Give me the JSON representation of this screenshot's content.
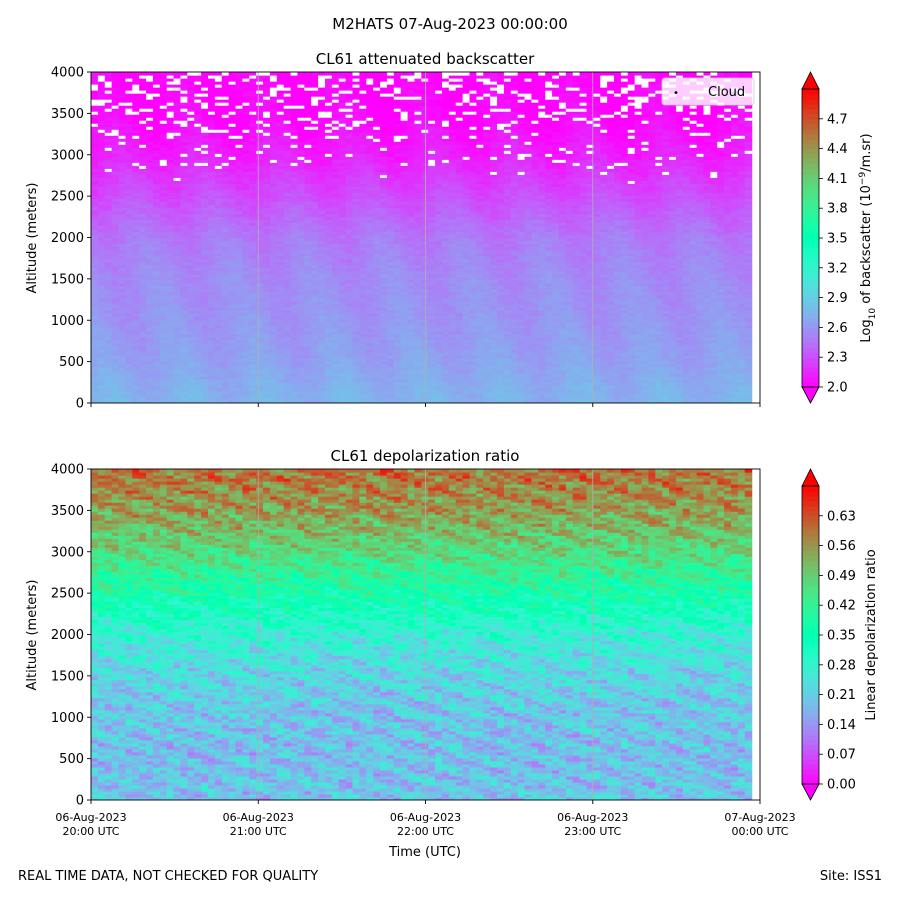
{
  "figure": {
    "suptitle": "M2HATS 07-Aug-2023 00:00:00",
    "footer_left": "REAL TIME DATA, NOT CHECKED FOR QUALITY",
    "footer_right": "Site: ISS1",
    "xlabel": "Time (UTC)",
    "x_ticks": [
      {
        "date": "06-Aug-2023",
        "time": "20:00 UTC"
      },
      {
        "date": "06-Aug-2023",
        "time": "21:00 UTC"
      },
      {
        "date": "06-Aug-2023",
        "time": "22:00 UTC"
      },
      {
        "date": "06-Aug-2023",
        "time": "23:00 UTC"
      },
      {
        "date": "07-Aug-2023",
        "time": "00:00 UTC"
      }
    ],
    "x_range_hours": [
      20,
      24
    ],
    "data_end_hour": 23.95
  },
  "chart_data": [
    {
      "type": "heatmap",
      "title": "CL61 attenuated backscatter",
      "ylabel": "Altitude (meters)",
      "ylim": [
        0,
        4000
      ],
      "y_ticks": [
        0,
        500,
        1000,
        1500,
        2000,
        2500,
        3000,
        3500,
        4000
      ],
      "grid": "vertical",
      "legend": {
        "label": "Cloud",
        "marker": "•",
        "placement": "top-right"
      },
      "colorbar": {
        "label_parts": [
          "Log",
          "10",
          " of backscatter (10",
          "−9",
          "/m.sr)"
        ],
        "range": [
          2.0,
          5.0
        ],
        "ticks": [
          "2.0",
          "2.3",
          "2.6",
          "2.9",
          "3.2",
          "3.5",
          "3.8",
          "4.1",
          "4.4",
          "4.7"
        ],
        "colormap": "rainbow"
      },
      "profile": [
        {
          "altitude": 0,
          "value": 2.75
        },
        {
          "altitude": 200,
          "value": 2.72
        },
        {
          "altitude": 500,
          "value": 2.66
        },
        {
          "altitude": 1000,
          "value": 2.6
        },
        {
          "altitude": 1500,
          "value": 2.56
        },
        {
          "altitude": 2000,
          "value": 2.48
        },
        {
          "altitude": 2500,
          "value": 2.3
        },
        {
          "altitude": 3000,
          "value": 2.12
        },
        {
          "altitude": 3500,
          "value": 2.02
        },
        {
          "altitude": 4000,
          "value": 2.0
        }
      ],
      "cloud_base_m": 2600
    },
    {
      "type": "heatmap",
      "title": "CL61 depolarization ratio",
      "ylabel": "Altitude (meters)",
      "ylim": [
        0,
        4000
      ],
      "y_ticks": [
        0,
        500,
        1000,
        1500,
        2000,
        2500,
        3000,
        3500,
        4000
      ],
      "grid": "vertical",
      "colorbar": {
        "label_parts": [
          "Linear depolarization ratio"
        ],
        "range": [
          0.0,
          0.7
        ],
        "ticks": [
          "0.00",
          "0.07",
          "0.14",
          "0.21",
          "0.28",
          "0.35",
          "0.42",
          "0.49",
          "0.56",
          "0.63"
        ],
        "colormap": "rainbow"
      },
      "profile": [
        {
          "altitude": 0,
          "value": 0.2
        },
        {
          "altitude": 500,
          "value": 0.19
        },
        {
          "altitude": 1000,
          "value": 0.2
        },
        {
          "altitude": 1500,
          "value": 0.22
        },
        {
          "altitude": 2000,
          "value": 0.27
        },
        {
          "altitude": 2500,
          "value": 0.37
        },
        {
          "altitude": 3000,
          "value": 0.47
        },
        {
          "altitude": 3500,
          "value": 0.55
        },
        {
          "altitude": 4000,
          "value": 0.6
        }
      ]
    }
  ]
}
